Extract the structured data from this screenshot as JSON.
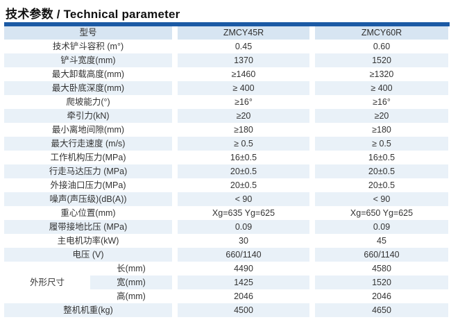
{
  "title": "技术参数 / Technical parameter",
  "colors": {
    "top_bar": "#1b5aa5",
    "header_bg": "#d7e5f2",
    "stripe_bg": "#e9f1f8",
    "text": "#333333"
  },
  "table": {
    "header": {
      "model_label": "型号",
      "col1": "ZMCY45R",
      "col2": "ZMCY60R"
    },
    "rows": [
      {
        "label": "技术铲斗容积 (m°)",
        "v1": "0.45",
        "v2": "0.60"
      },
      {
        "label": "铲斗宽度(mm)",
        "v1": "1370",
        "v2": "1520"
      },
      {
        "label": "最大卸载高度(mm)",
        "v1": "≥1460",
        "v2": "≥1320"
      },
      {
        "label": "最大卧底深度(mm)",
        "v1": "≥ 400",
        "v2": "≥ 400"
      },
      {
        "label": "爬坡能力(°)",
        "v1": "≥16°",
        "v2": "≥16°"
      },
      {
        "label": "牵引力(kN)",
        "v1": "≥20",
        "v2": "≥20"
      },
      {
        "label": "最小离地间隙(mm)",
        "v1": "≥180",
        "v2": "≥180"
      },
      {
        "label": "最大行走速度 (m/s)",
        "v1": "≥ 0.5",
        "v2": "≥ 0.5"
      },
      {
        "label": "工作机构压力(MPa)",
        "v1": "16±0.5",
        "v2": "16±0.5"
      },
      {
        "label": "行走马达压力 (MPa)",
        "v1": "20±0.5",
        "v2": "20±0.5"
      },
      {
        "label": "外接油口压力(MPa)",
        "v1": "20±0.5",
        "v2": "20±0.5"
      },
      {
        "label": "噪声(声压级)(dB(A))",
        "v1": "< 90",
        "v2": "< 90"
      },
      {
        "label": "重心位置(mm)",
        "v1": "Xg=635 Yg=625",
        "v2": "Xg=650 Yg=625"
      },
      {
        "label": "履带接地比压 (MPa)",
        "v1": "0.09",
        "v2": "0.09"
      },
      {
        "label": "主电机功率(kW)",
        "v1": "30",
        "v2": "45"
      },
      {
        "label": "电压 (V)",
        "v1": "660/1140",
        "v2": "660/1140"
      }
    ],
    "dims": {
      "label": "外形尺寸",
      "rows": [
        {
          "label": "长(mm)",
          "v1": "4490",
          "v2": "4580"
        },
        {
          "label": "宽(mm)",
          "v1": "1425",
          "v2": "1520"
        },
        {
          "label": "高(mm)",
          "v1": "2046",
          "v2": "2046"
        }
      ]
    },
    "weight_row": {
      "label": "整机机重(kg)",
      "v1": "4500",
      "v2": "4650"
    }
  }
}
